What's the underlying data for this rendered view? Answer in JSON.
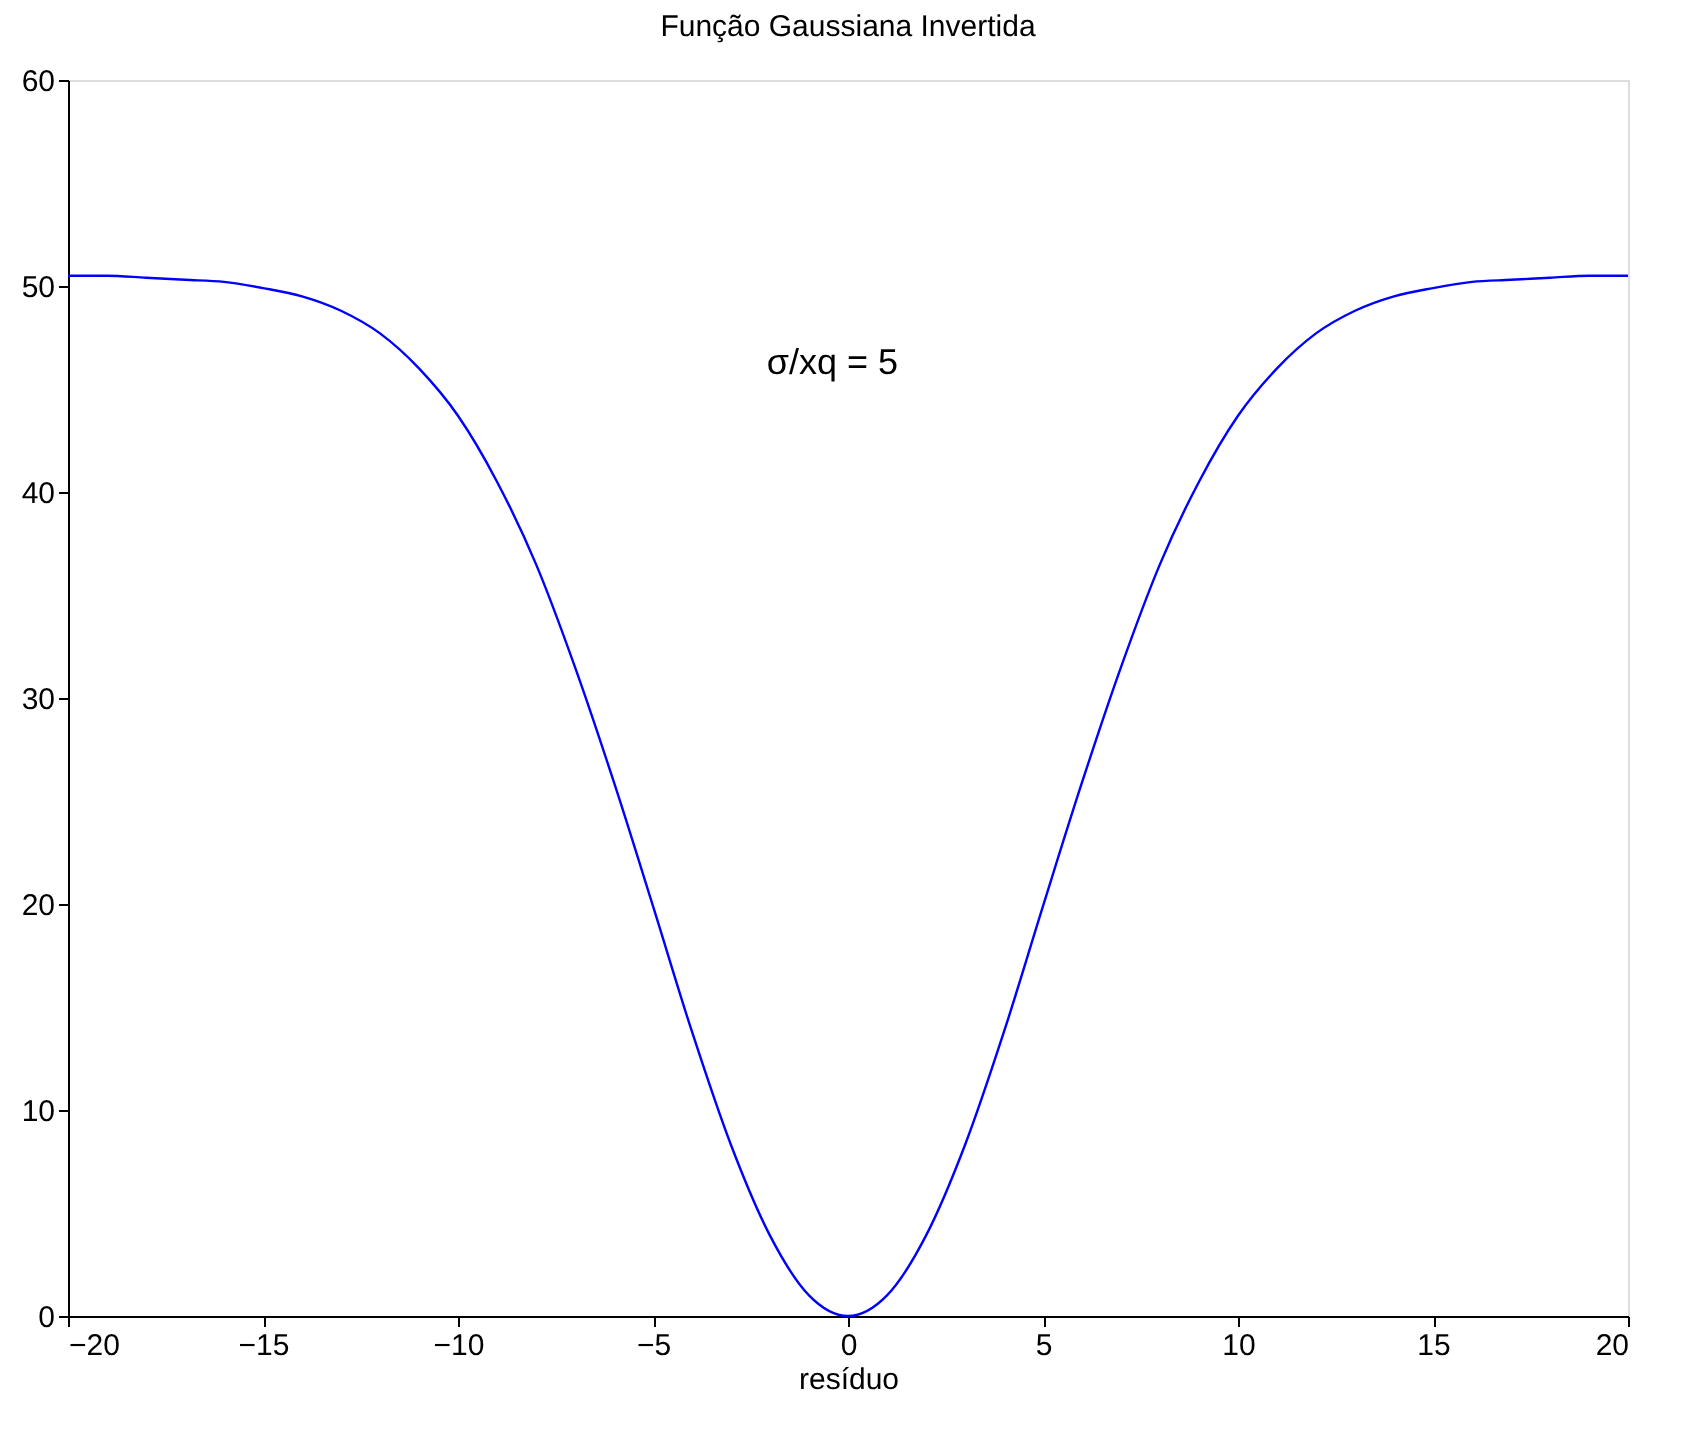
{
  "chart_data": {
    "type": "line",
    "title": "Função Gaussiana Invertida",
    "xlabel": "resíduo",
    "x": [
      -20,
      -19,
      -18,
      -17,
      -16,
      -15,
      -14,
      -13,
      -12,
      -11,
      -10,
      -9,
      -8,
      -7,
      -6,
      -5,
      -4,
      -3,
      -2,
      -1,
      0,
      1,
      2,
      3,
      4,
      5,
      6,
      7,
      8,
      9,
      10,
      11,
      12,
      13,
      14,
      15,
      16,
      17,
      18,
      19,
      20
    ],
    "series": [
      {
        "color": "#0000ff",
        "values": [
          50.5,
          50.5,
          50.4,
          50.3,
          50.2,
          49.9,
          49.5,
          48.8,
          47.7,
          46.0,
          43.7,
          40.5,
          36.5,
          31.5,
          25.9,
          19.9,
          13.8,
          8.3,
          3.9,
          1.0,
          0,
          1.0,
          3.9,
          8.3,
          13.8,
          19.9,
          25.9,
          31.5,
          36.5,
          40.5,
          43.7,
          46.0,
          47.7,
          48.8,
          49.5,
          49.9,
          50.2,
          50.3,
          50.4,
          50.5,
          50.5
        ]
      }
    ],
    "xlim": [
      -20,
      20
    ],
    "ylim": [
      0,
      60
    ],
    "xticks": [
      -20,
      -15,
      -10,
      -5,
      0,
      5,
      10,
      15,
      20
    ],
    "yticks": [
      0,
      10,
      20,
      30,
      40,
      50,
      60
    ],
    "annotations": [
      "σ/xq = 5"
    ],
    "grid": false,
    "line_style": "solid"
  }
}
